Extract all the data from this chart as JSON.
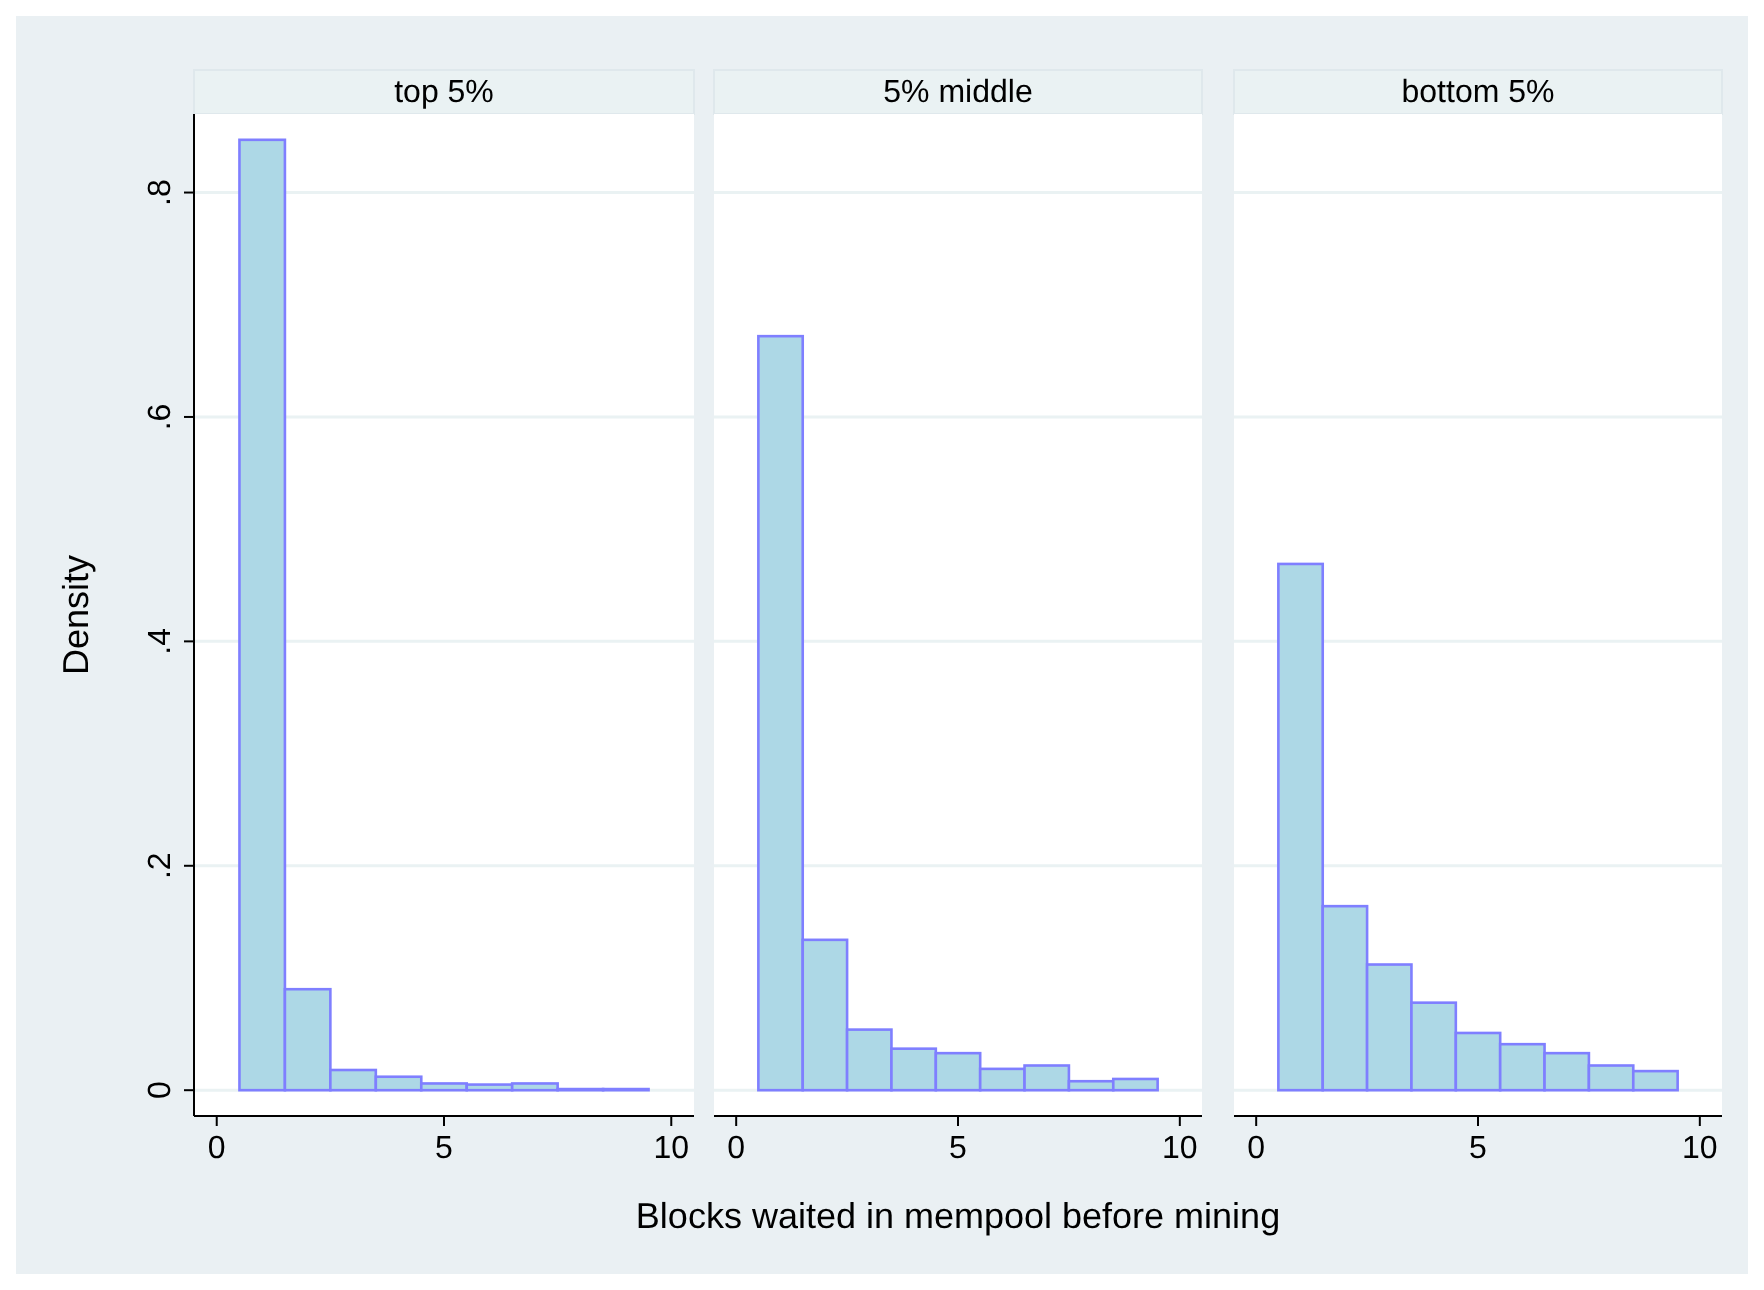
{
  "chart_data": [
    {
      "type": "histogram",
      "title": "top 5%",
      "ylabel": "Density",
      "bins": [
        0.5,
        1.5,
        2.5,
        3.5,
        4.5,
        5.5,
        6.5,
        7.5,
        8.5,
        9.5
      ],
      "values": [
        0.847,
        0.09,
        0.018,
        0.012,
        0.006,
        0.005,
        0.006,
        0.001,
        0.001
      ],
      "color": "#add8e6",
      "xlim": [
        -0.5,
        10.5
      ],
      "xticks": [
        0,
        5,
        10
      ],
      "ylim": [
        -0.023,
        0.87
      ],
      "yticks": [
        {
          "value": 0,
          "label": "0"
        },
        {
          "value": 0.2,
          "label": ".2"
        },
        {
          "value": 0.4,
          "label": ".4"
        },
        {
          "value": 0.6,
          "label": ".6"
        },
        {
          "value": 0.8,
          "label": ".8"
        }
      ],
      "grid": "y"
    },
    {
      "type": "histogram",
      "title": "5% middle",
      "xlabel": "Blocks waited in mempool before mining",
      "bins": [
        0.5,
        1.5,
        2.5,
        3.5,
        4.5,
        5.5,
        6.5,
        7.5,
        8.5,
        9.5
      ],
      "values": [
        0.672,
        0.134,
        0.054,
        0.037,
        0.033,
        0.019,
        0.022,
        0.008,
        0.01
      ],
      "color": "#add8e6",
      "xlim": [
        -0.5,
        10.5
      ],
      "xticks": [
        0,
        5,
        10
      ],
      "ylim": [
        -0.023,
        0.87
      ],
      "yticks": [
        {
          "value": 0,
          "label": null
        },
        {
          "value": 0.2,
          "label": null
        },
        {
          "value": 0.4,
          "label": null
        },
        {
          "value": 0.6,
          "label": null
        },
        {
          "value": 0.8,
          "label": null
        }
      ],
      "grid": "y",
      "tick_labels": "x"
    },
    {
      "type": "histogram",
      "title": "bottom 5%",
      "bins": [
        0.5,
        1.5,
        2.5,
        3.5,
        4.5,
        5.5,
        6.5,
        7.5,
        8.5,
        9.5
      ],
      "values": [
        0.469,
        0.164,
        0.112,
        0.078,
        0.051,
        0.041,
        0.033,
        0.022,
        0.017
      ],
      "color": "#add8e6",
      "xlim": [
        -0.5,
        10.5
      ],
      "xticks": [
        0,
        5,
        10
      ],
      "ylim": [
        -0.023,
        0.87
      ],
      "yticks": [
        {
          "value": 0,
          "label": null
        },
        {
          "value": 0.2,
          "label": null
        },
        {
          "value": 0.4,
          "label": null
        },
        {
          "value": 0.6,
          "label": null
        },
        {
          "value": 0.8,
          "label": null
        }
      ],
      "grid": "y",
      "tick_labels": "x"
    }
  ]
}
